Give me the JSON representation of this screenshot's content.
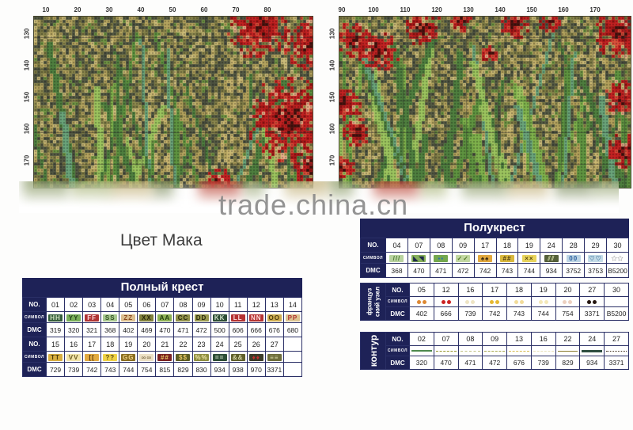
{
  "watermark": {
    "text": "trade.china.cn"
  },
  "caption": "Цвет Мака",
  "charts": {
    "left": {
      "top_ticks": [
        "10",
        "20",
        "30",
        "40",
        "50",
        "60",
        "70",
        "80"
      ],
      "side_ticks": [
        "130",
        "140",
        "150",
        "160",
        "170"
      ]
    },
    "right": {
      "top_ticks": [
        "90",
        "100",
        "110",
        "120",
        "130",
        "140",
        "150",
        "160",
        "170"
      ],
      "side_ticks": [
        "130",
        "140",
        "150",
        "160",
        "170"
      ]
    }
  },
  "labels": {
    "no": "NO.",
    "symbol": "СИМВОЛ",
    "dmc": "DMC"
  },
  "colors": {
    "navy": "#1e2257",
    "watermark_gray": "#828282"
  },
  "full_cross": {
    "title": "Полный крест",
    "block1": {
      "no": [
        "01",
        "02",
        "03",
        "04",
        "05",
        "06",
        "07",
        "08",
        "09",
        "10",
        "11",
        "12",
        "13",
        "14"
      ],
      "symbols": [
        {
          "g": "HH",
          "bg": "#355e3b",
          "fg": "#d6e6c6"
        },
        {
          "g": "YY",
          "bg": "#78ae58",
          "fg": "#24401a"
        },
        {
          "g": "FF",
          "bg": "#b03434",
          "fg": "#ffe0e0"
        },
        {
          "g": "SS",
          "bg": "#a8c890",
          "fg": "#2f5020"
        },
        {
          "g": "ZZ",
          "bg": "#dcbe8e",
          "fg": "#8a4a20"
        },
        {
          "g": "XX",
          "bg": "#80803c",
          "fg": "#26260e"
        },
        {
          "g": "AA",
          "bg": "#8cb054",
          "fg": "#223c10"
        },
        {
          "g": "CC",
          "bg": "#90904a",
          "fg": "#28280e"
        },
        {
          "g": "DD",
          "bg": "#9a9a50",
          "fg": "#28280e"
        },
        {
          "g": "KK",
          "bg": "#2e4e36",
          "fg": "#d0e0c8"
        },
        {
          "g": "LL",
          "bg": "#b43232",
          "fg": "#ffdede"
        },
        {
          "g": "NN",
          "bg": "#b43232",
          "fg": "#ffdede"
        },
        {
          "g": "OO",
          "bg": "#cfae52",
          "fg": "#4a3a10"
        },
        {
          "g": "PP",
          "bg": "#dcc492",
          "fg": "#b03030"
        }
      ],
      "dmc": [
        "319",
        "320",
        "321",
        "368",
        "402",
        "469",
        "470",
        "471",
        "472",
        "500",
        "606",
        "666",
        "676",
        "680"
      ]
    },
    "block2": {
      "no": [
        "15",
        "16",
        "17",
        "18",
        "19",
        "20",
        "21",
        "22",
        "23",
        "24",
        "25",
        "26",
        "27",
        ""
      ],
      "symbols": [
        {
          "g": "TT",
          "bg": "#d8ae40",
          "fg": "#4a3a10"
        },
        {
          "g": "VV",
          "bg": "#f2e4a8",
          "fg": "#6a5a22"
        },
        {
          "g": "[[",
          "bg": "#e2aa40",
          "fg": "#5a3a10"
        },
        {
          "g": "??",
          "bg": "#f0d246",
          "fg": "#5a4a12"
        },
        {
          "g": "GG",
          "bg": "#8a6e22",
          "fg": "#f0d284"
        },
        {
          "g": "∞∞",
          "bg": "#ece0c4",
          "fg": "#8a7a58"
        },
        {
          "g": "##",
          "bg": "#7c2424",
          "fg": "#eac864"
        },
        {
          "g": "$$",
          "bg": "#5e5e24",
          "fg": "#eac864"
        },
        {
          "g": "%%",
          "bg": "#8e8e40",
          "fg": "#eee4a8"
        },
        {
          "g": "==",
          "bg": "#2e4e36",
          "fg": "#d0e0c8"
        },
        {
          "g": "&&",
          "bg": "#60602c",
          "fg": "#d6d6a4"
        },
        {
          "g": "♦♦",
          "bg": "#3c3c2a",
          "fg": "#c43030"
        },
        {
          "g": "≡≡",
          "bg": "#6e6e3c",
          "fg": "#d6d6a4"
        },
        null
      ],
      "dmc": [
        "729",
        "739",
        "742",
        "743",
        "744",
        "754",
        "815",
        "829",
        "830",
        "934",
        "938",
        "970",
        "3371",
        ""
      ]
    }
  },
  "half_cross": {
    "title": "Полукрест",
    "no": [
      "04",
      "07",
      "08",
      "09",
      "17",
      "18",
      "19",
      "24",
      "28",
      "29",
      "30"
    ],
    "symbols": [
      {
        "g": "///",
        "bg": "#b9d3a0",
        "fg": "#4a7a30"
      },
      {
        "g": "◣◥",
        "bg": "#86b05a",
        "fg": "#1e2a4a"
      },
      {
        "g": "▪▪",
        "bg": "#74a84e",
        "fg": "#2b6fae"
      },
      {
        "g": "✓✓",
        "bg": "#c2d8a2",
        "fg": "#557a2a"
      },
      {
        "g": "♠♠",
        "bg": "#e2a83e",
        "fg": "#3a2a10"
      },
      {
        "g": "##",
        "bg": "#d9b83e",
        "fg": "#4a3a10"
      },
      {
        "g": "××",
        "bg": "#e8d45c",
        "fg": "#5a4a10"
      },
      {
        "g": "⫽⫽",
        "bg": "#55603a",
        "fg": "#c9d4a0"
      },
      {
        "g": "00",
        "bg": "#bcd4e4",
        "fg": "#2b5f9e"
      },
      {
        "g": "♡♡",
        "bg": "#c4dce8",
        "fg": "#4a7aa0"
      },
      {
        "g": "✩✩",
        "bg": "#ffffff",
        "fg": "#9a9a9a"
      }
    ],
    "dmc": [
      "368",
      "470",
      "471",
      "472",
      "742",
      "743",
      "744",
      "934",
      "3752",
      "3753",
      "B5200"
    ]
  },
  "french_knot": {
    "side_label_line1": "француз",
    "side_label_line2": "ский узел",
    "no": [
      "05",
      "12",
      "16",
      "17",
      "18",
      "19",
      "20",
      "27",
      "30"
    ],
    "dots": [
      "#dd8833",
      "#cc2222",
      "#eee4c4",
      "#e6b832",
      "#f2dc9a",
      "#f4e8b8",
      "#ecd0c0",
      "#241510",
      "#ffffff"
    ],
    "dmc": [
      "402",
      "666",
      "739",
      "742",
      "743",
      "744",
      "754",
      "3371",
      "B5200"
    ]
  },
  "outline": {
    "side_label": "контур",
    "no": [
      "02",
      "07",
      "08",
      "09",
      "13",
      "16",
      "22",
      "24",
      "27"
    ],
    "lines": [
      {
        "color": "#4e8a4e",
        "style": "solid",
        "w": 2
      },
      {
        "color": "#96962e",
        "style": "dashed",
        "w": 1
      },
      {
        "color": "#c2c284",
        "style": "dashed",
        "w": 1
      },
      {
        "color": "#a8a84e",
        "style": "dashed",
        "w": 1
      },
      {
        "color": "#d8bc52",
        "style": "dashed",
        "w": 1
      },
      {
        "color": "#e8e0b8",
        "style": "dashed",
        "w": 1
      },
      {
        "color": "#8a7a2e",
        "style": "solid",
        "w": 1
      },
      {
        "color": "#2e4e40",
        "style": "solid",
        "w": 3
      },
      {
        "color": "#3a2a18",
        "style": "dotted",
        "w": 1
      }
    ],
    "dmc": [
      "320",
      "470",
      "471",
      "472",
      "676",
      "739",
      "829",
      "934",
      "3371"
    ]
  }
}
